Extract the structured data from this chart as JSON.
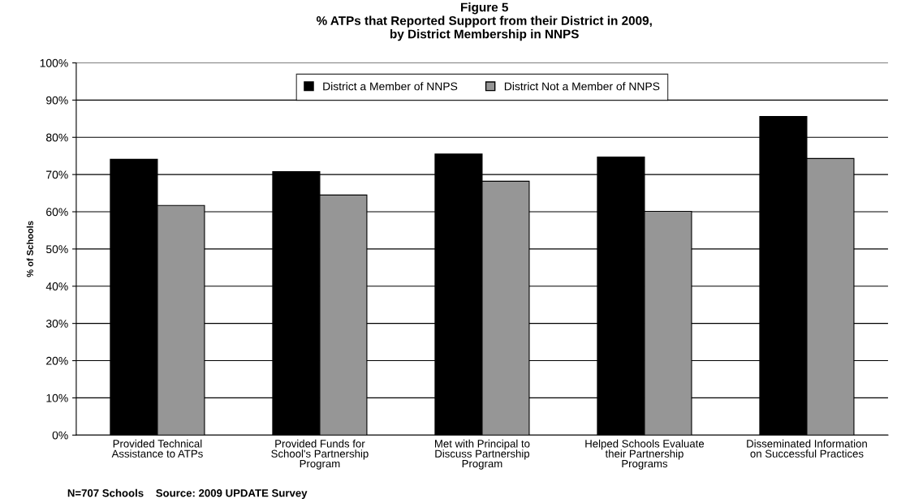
{
  "chart_data": {
    "type": "bar",
    "title": "Figure 5\n% ATPs that Reported Support from their District in 2009,\nby District Membership in NNPS",
    "ylabel": "% of Schools",
    "categories": [
      "Provided Technical\nAssistance to ATPs",
      "Provided Funds for\nSchool's Partnership\nProgram",
      "Met with Principal to\nDiscuss Partnership\nProgram",
      "Helped Schools Evaluate\ntheir Partnership\nPrograms",
      "Disseminated Information\non Successful Practices"
    ],
    "series": [
      {
        "name": "District a Member of NNPS",
        "color": "#000000",
        "values": [
          74.1,
          70.8,
          75.5,
          74.7,
          85.6
        ]
      },
      {
        "name": "District Not a Member of NNPS",
        "color": "#969696",
        "values": [
          61.7,
          64.5,
          68.2,
          60.1,
          74.3
        ]
      }
    ],
    "ylim": [
      0,
      100
    ],
    "yticks": [
      {
        "value": 0,
        "label": "0%"
      },
      {
        "value": 10,
        "label": "10%"
      },
      {
        "value": 20,
        "label": "20%"
      },
      {
        "value": 30,
        "label": "30%"
      },
      {
        "value": 40,
        "label": "40%"
      },
      {
        "value": 50,
        "label": "50%"
      },
      {
        "value": 60,
        "label": "60%"
      },
      {
        "value": 70,
        "label": "70%"
      },
      {
        "value": 80,
        "label": "80%"
      },
      {
        "value": 90,
        "label": "90%"
      },
      {
        "value": 100,
        "label": "100%"
      }
    ],
    "grid": "y",
    "legend": "top",
    "annotations": [
      "N=707 Schools    Source: 2009 UPDATE Survey"
    ]
  }
}
